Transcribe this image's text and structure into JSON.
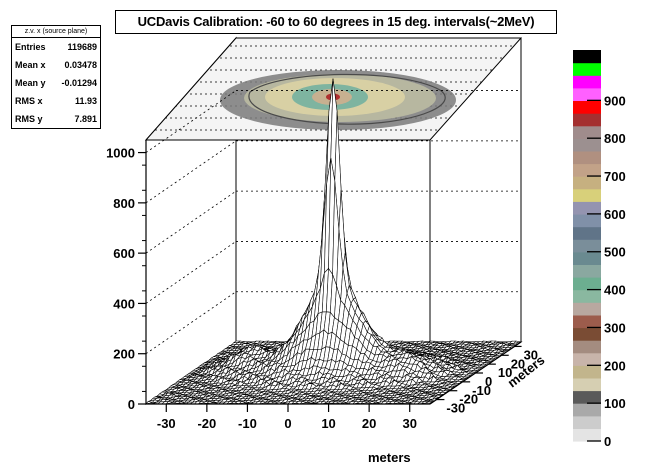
{
  "stats_box": {
    "header": "z.v. x (source plane)",
    "rows": [
      {
        "label": "Entries",
        "value": "119689"
      },
      {
        "label": "Mean x",
        "value": "0.03478"
      },
      {
        "label": "Mean y",
        "value": "-0.01294"
      },
      {
        "label": "RMS x",
        "value": "11.93"
      },
      {
        "label": "RMS y",
        "value": "7.891"
      }
    ]
  },
  "chart_data": {
    "type": "surface",
    "title": "UCDavis Calibration: -60 to 60 degrees in 15 deg. intervals(~2MeV)",
    "xlabel": "meters",
    "ylabel": "meters",
    "x_ticks": [
      "-30",
      "-20",
      "-10",
      "0",
      "10",
      "20",
      "30"
    ],
    "y_ticks": [
      "-30",
      "-20",
      "-10",
      "0",
      "10",
      "20",
      "30"
    ],
    "z_ticks": [
      "0",
      "200",
      "400",
      "600",
      "800",
      "1000"
    ],
    "xlim": [
      -35,
      35
    ],
    "ylim": [
      -35,
      35
    ],
    "zlim": [
      0,
      1050
    ],
    "peak": {
      "x": 0,
      "y": 0,
      "z": 1030
    },
    "colorbar": {
      "ticks": [
        "0",
        "100",
        "200",
        "300",
        "400",
        "500",
        "600",
        "700",
        "800",
        "900"
      ],
      "colors": [
        "#e4e4e4",
        "#cccccc",
        "#a9a9a9",
        "#5a5a5a",
        "#d6cfb2",
        "#c2b58c",
        "#c8b4aa",
        "#a48c80",
        "#7a4c34",
        "#9c5c4c",
        "#b8a8a0",
        "#8ab8a0",
        "#6cae90",
        "#8aa8a0",
        "#6a8a90",
        "#7a8e9a",
        "#607488",
        "#8090a8",
        "#9494b0",
        "#d8d07a",
        "#c6b080",
        "#c2a288",
        "#b09080",
        "#9c9090",
        "#a08c8c",
        "#a43030",
        "#ff0000",
        "#ff60ff",
        "#ff00ff",
        "#00ff00",
        "#000000"
      ]
    }
  }
}
